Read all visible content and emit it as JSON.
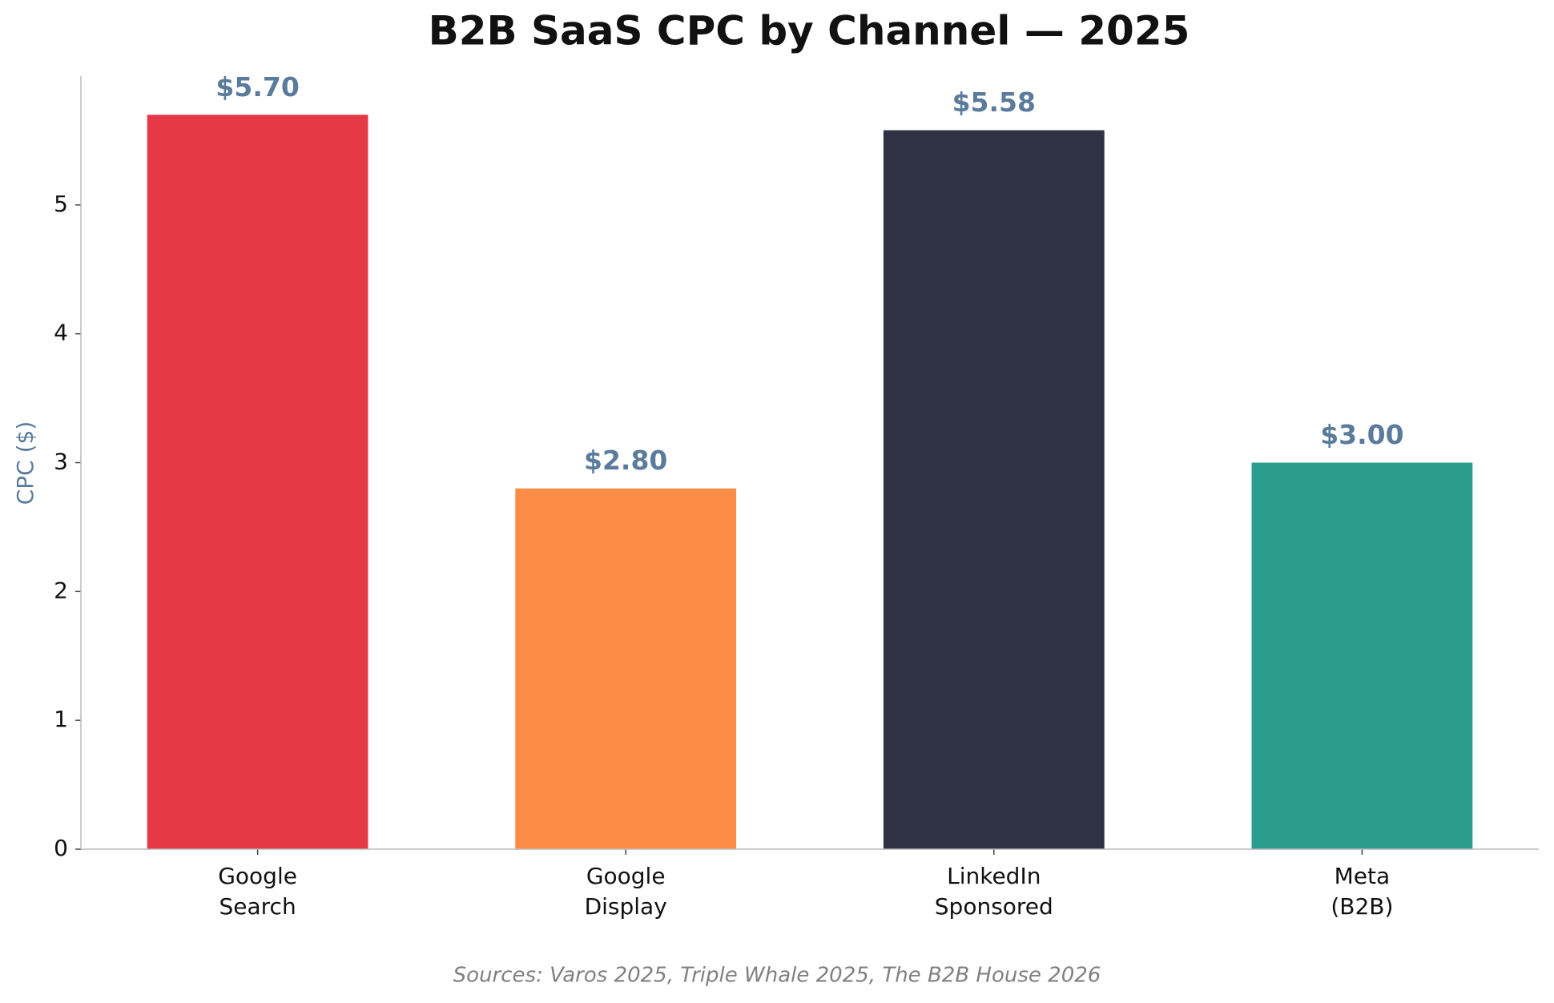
{
  "chart_data": {
    "type": "bar",
    "title": "B2B SaaS CPC by Channel — 2025",
    "y_label": "CPC ($)",
    "categories": [
      "Google\nSearch",
      "Google\nDisplay",
      "LinkedIn\nSponsored",
      "Meta\n(B2B)"
    ],
    "values": [
      5.7,
      2.8,
      5.58,
      3.0
    ],
    "value_labels": [
      "$5.70",
      "$2.80",
      "$5.58",
      "$3.00"
    ],
    "colors": [
      "#e63946",
      "#fb8c45",
      "#2e3243",
      "#2a9d8f"
    ],
    "ylim": [
      0,
      6
    ],
    "yticks": [
      0,
      1,
      2,
      3,
      4,
      5
    ],
    "grid": false,
    "source": "Sources: Varos 2025, Triple Whale 2025, The B2B House 2026"
  }
}
